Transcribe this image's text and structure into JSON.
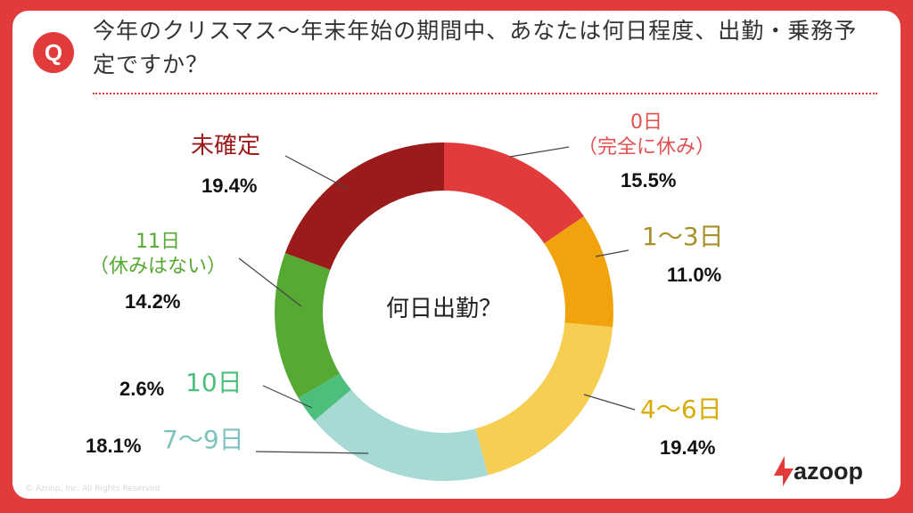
{
  "question": {
    "badge": "Q",
    "title": "今年のクリスマス〜年末年始の期間中、あなたは何日程度、出勤・乗務予定ですか？"
  },
  "chart_data": {
    "type": "pie",
    "donut": true,
    "center_label": "何日出勤？",
    "categories": [
      "0日（完全に休み）",
      "1〜3日",
      "4〜6日",
      "7〜9日",
      "10日",
      "11日（休みはない）",
      "未確定"
    ],
    "values": [
      15.5,
      11.0,
      19.4,
      18.1,
      2.6,
      14.2,
      19.4
    ],
    "value_labels": [
      "15.5%",
      "11.0%",
      "19.4%",
      "18.1%",
      "2.6%",
      "14.2%",
      "19.4%"
    ],
    "colors": [
      "#e23b3b",
      "#f0a30c",
      "#f6cf52",
      "#a7d9d5",
      "#4dbf7d",
      "#56a933",
      "#9b1a1a"
    ],
    "label_colors": [
      "#e05252",
      "#a8902a",
      "#d9ab00",
      "#7cc3be",
      "#4dbf7d",
      "#56a933",
      "#9b1a1a"
    ]
  },
  "labels": {
    "l0a": "0日",
    "l0b": "（完全に休み）",
    "l1": "1〜3日",
    "l2": "4〜6日",
    "l3": "7〜9日",
    "l4": "10日",
    "l5a": "11日",
    "l5b": "（休みはない）",
    "l6": "未確定"
  },
  "footer": {
    "copyright": "© Azoop, Inc. All Rights Reserved",
    "logo": "azoop"
  }
}
